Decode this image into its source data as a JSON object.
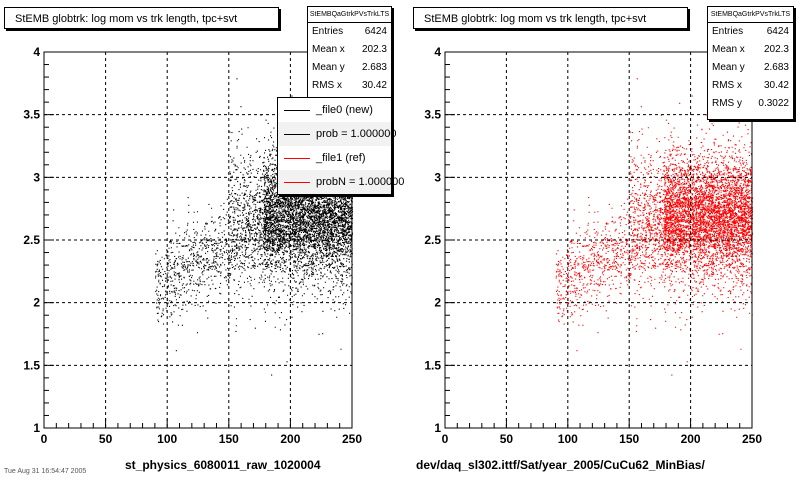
{
  "colors": {
    "new": "#000000",
    "ref": "#ff0000"
  },
  "footer_text": "Tue Aug 31 16:54:47 2005",
  "chart_data": [
    {
      "type": "scatter",
      "title": "StEMB globtrk: log mom vs trk length, tpc+svt",
      "xlabel": "st_physics_6080011_raw_1020004",
      "ylabel": "",
      "xlim": [
        0,
        250
      ],
      "ylim": [
        1,
        4
      ],
      "xticks": [
        "0",
        "50",
        "100",
        "150",
        "200",
        "250"
      ],
      "yticks": [
        "1",
        "1.5",
        "2",
        "2.5",
        "3",
        "3.5",
        "4"
      ],
      "grid": true,
      "stats": {
        "name": "StEMBQaGtrkPVsTrkLTS",
        "entries_label": "Entries",
        "entries": "6424",
        "meanx_label": "Mean x",
        "meanx": "202.3",
        "meany_label": "Mean y",
        "meany": "2.683",
        "rmsx_label": "RMS x",
        "rmsx": "30.42"
      },
      "legend": {
        "placement": "top-right",
        "entries": [
          {
            "label": "_file0 (new)",
            "color": "#000000"
          },
          {
            "label": "prob = 1.000000",
            "color": "#000000"
          },
          {
            "label": "_file1 (ref)",
            "color": "#ff0000"
          },
          {
            "label": "probN = 1.000000",
            "color": "#ff0000"
          }
        ]
      },
      "series": [
        {
          "color": "#000000",
          "n": 6424
        }
      ]
    },
    {
      "type": "scatter",
      "title": "StEMB globtrk: log mom vs trk length, tpc+svt",
      "xlabel": "dev/daq_sl302.ittf/Sat/year_2005/CuCu62_MinBias/",
      "ylabel": "",
      "xlim": [
        0,
        250
      ],
      "ylim": [
        1,
        4
      ],
      "xticks": [
        "0",
        "50",
        "100",
        "150",
        "200",
        "250"
      ],
      "yticks": [
        "1",
        "1.5",
        "2",
        "2.5",
        "3",
        "3.5",
        "4"
      ],
      "grid": true,
      "stats": {
        "name": "StEMBQaGtrkPVsTrkLTS",
        "entries_label": "Entries",
        "entries": "6424",
        "meanx_label": "Mean x",
        "meanx": "202.3",
        "meany_label": "Mean y",
        "meany": "2.683",
        "rmsx_label": "RMS x",
        "rmsx": "30.42",
        "rmsy_label": "RMS y",
        "rmsy": "0.3022"
      },
      "series": [
        {
          "color": "#ff0000",
          "n": 6424
        }
      ]
    }
  ]
}
